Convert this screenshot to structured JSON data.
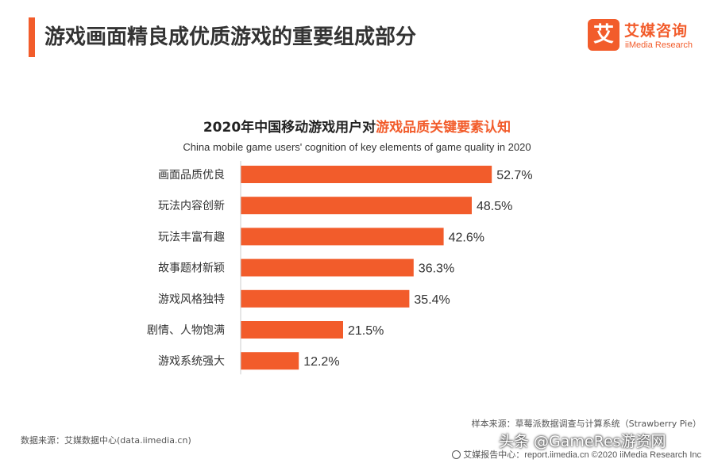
{
  "header": {
    "title": "游戏画面精良成优质游戏的重要组成部分",
    "logo_mark": "艾",
    "logo_cn": "艾媒咨询",
    "logo_en": "iiMedia Research"
  },
  "chart_data": {
    "type": "bar",
    "orientation": "horizontal",
    "title_prefix": "2020年中国移动游戏用户对",
    "title_highlight": "游戏品质关键要素认知",
    "subtitle": "China mobile game users' cognition of key elements of game quality in 2020",
    "categories": [
      "画面品质优良",
      "玩法内容创新",
      "玩法丰富有趣",
      "故事题材新颖",
      "游戏风格独特",
      "剧情、人物饱满",
      "游戏系统强大"
    ],
    "values": [
      52.7,
      48.5,
      42.6,
      36.3,
      35.4,
      21.5,
      12.2
    ],
    "value_labels": [
      "52.7%",
      "48.5%",
      "42.6%",
      "36.3%",
      "35.4%",
      "21.5%",
      "12.2%"
    ],
    "unit": "%",
    "xlim": [
      0,
      100
    ],
    "bar_color": "#f25c2b",
    "grid": false,
    "legend": "none"
  },
  "footer": {
    "sample_source": "样本来源：草莓派数据调查与计算系统（Strawberry Pie）",
    "data_source": "数据来源：艾媒数据中心(data.iimedia.cn)",
    "report_center": "艾媒报告中心：report.iimedia.cn  ©2020  iiMedia Research  Inc",
    "watermark": "头条 @GameRes游资网"
  }
}
